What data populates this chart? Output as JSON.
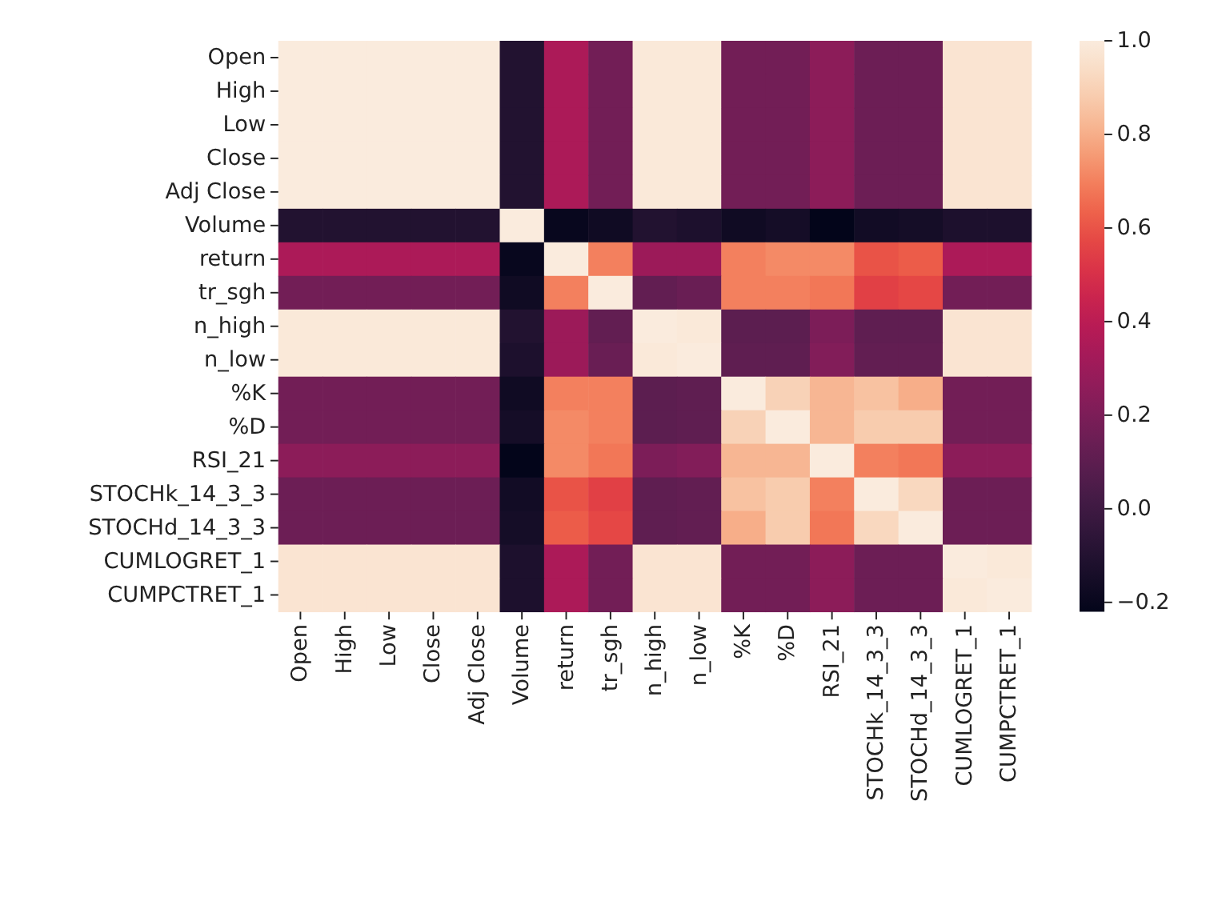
{
  "chart_data": {
    "type": "heatmap",
    "categories": [
      "Open",
      "High",
      "Low",
      "Close",
      "Adj Close",
      "Volume",
      "return",
      "tr_sgh",
      "n_high",
      "n_low",
      "%K",
      "%D",
      "RSI_21",
      "STOCHk_14_3_3",
      "STOCHd_14_3_3",
      "CUMLOGRET_1",
      "CUMPCTRET_1"
    ],
    "y_categories": [
      "Open",
      "High",
      "Low",
      "Close",
      "Adj Close",
      "Volume",
      "return",
      "tr_sgh",
      "n_high",
      "n_low",
      "%K",
      "%D",
      "RSI_21",
      "STOCHk_14_3_3",
      "STOCHd_14_3_3",
      "CUMLOGRET_1",
      "CUMPCTRET_1"
    ],
    "cells": [
      [
        1,
        1,
        1,
        1,
        1,
        -0.1,
        0.35,
        0.17,
        0.99,
        0.99,
        0.17,
        0.17,
        0.25,
        0.15,
        0.15,
        0.97,
        0.97
      ],
      [
        1,
        1,
        1,
        1,
        1,
        -0.1,
        0.35,
        0.17,
        0.99,
        0.99,
        0.17,
        0.17,
        0.25,
        0.15,
        0.15,
        0.97,
        0.97
      ],
      [
        1,
        1,
        1,
        1,
        1,
        -0.1,
        0.35,
        0.17,
        0.99,
        0.99,
        0.17,
        0.17,
        0.25,
        0.15,
        0.15,
        0.97,
        0.97
      ],
      [
        1,
        1,
        1,
        1,
        1,
        -0.1,
        0.35,
        0.17,
        0.99,
        0.99,
        0.17,
        0.17,
        0.25,
        0.15,
        0.15,
        0.97,
        0.97
      ],
      [
        1,
        1,
        1,
        1,
        1,
        -0.1,
        0.35,
        0.17,
        0.99,
        0.99,
        0.17,
        0.17,
        0.25,
        0.15,
        0.15,
        0.97,
        0.97
      ],
      [
        -0.1,
        -0.1,
        -0.1,
        -0.1,
        -0.1,
        1,
        -0.2,
        -0.17,
        -0.1,
        -0.12,
        -0.17,
        -0.15,
        -0.22,
        -0.16,
        -0.15,
        -0.12,
        -0.12
      ],
      [
        0.35,
        0.35,
        0.35,
        0.35,
        0.35,
        -0.2,
        1,
        0.7,
        0.3,
        0.3,
        0.7,
        0.72,
        0.72,
        0.6,
        0.62,
        0.35,
        0.35
      ],
      [
        0.17,
        0.17,
        0.17,
        0.17,
        0.17,
        -0.17,
        0.7,
        1,
        0.12,
        0.14,
        0.7,
        0.7,
        0.68,
        0.55,
        0.57,
        0.17,
        0.17
      ],
      [
        0.99,
        0.99,
        0.99,
        0.99,
        0.99,
        -0.1,
        0.3,
        0.12,
        1,
        0.99,
        0.1,
        0.1,
        0.2,
        0.11,
        0.11,
        0.97,
        0.97
      ],
      [
        0.99,
        0.99,
        0.99,
        0.99,
        0.99,
        -0.12,
        0.3,
        0.14,
        0.99,
        1,
        0.11,
        0.11,
        0.22,
        0.12,
        0.12,
        0.97,
        0.97
      ],
      [
        0.17,
        0.17,
        0.17,
        0.17,
        0.17,
        -0.17,
        0.7,
        0.7,
        0.1,
        0.11,
        1,
        0.9,
        0.82,
        0.85,
        0.8,
        0.17,
        0.17
      ],
      [
        0.17,
        0.17,
        0.17,
        0.17,
        0.17,
        -0.15,
        0.72,
        0.7,
        0.1,
        0.11,
        0.9,
        1,
        0.82,
        0.88,
        0.88,
        0.17,
        0.17
      ],
      [
        0.25,
        0.25,
        0.25,
        0.25,
        0.25,
        -0.22,
        0.72,
        0.68,
        0.2,
        0.22,
        0.82,
        0.82,
        1,
        0.7,
        0.68,
        0.25,
        0.25
      ],
      [
        0.15,
        0.15,
        0.15,
        0.15,
        0.15,
        -0.16,
        0.6,
        0.55,
        0.11,
        0.12,
        0.85,
        0.88,
        0.7,
        1,
        0.92,
        0.15,
        0.15
      ],
      [
        0.15,
        0.15,
        0.15,
        0.15,
        0.15,
        -0.15,
        0.62,
        0.57,
        0.11,
        0.12,
        0.8,
        0.88,
        0.68,
        0.92,
        1,
        0.15,
        0.15
      ],
      [
        0.97,
        0.97,
        0.97,
        0.97,
        0.97,
        -0.12,
        0.35,
        0.17,
        0.97,
        0.97,
        0.17,
        0.17,
        0.25,
        0.15,
        0.15,
        1,
        0.99
      ],
      [
        0.97,
        0.97,
        0.97,
        0.97,
        0.97,
        -0.12,
        0.35,
        0.17,
        0.97,
        0.97,
        0.17,
        0.17,
        0.25,
        0.15,
        0.15,
        0.99,
        1
      ]
    ],
    "clim": [
      -0.22,
      1.0
    ],
    "cticks": [
      {
        "value": -0.2,
        "label": "−0.2"
      },
      {
        "value": 0,
        "label": "0.0"
      },
      0.2,
      0.4,
      0.6,
      0.8,
      {
        "value": 1.0,
        "label": "1.0"
      }
    ]
  }
}
